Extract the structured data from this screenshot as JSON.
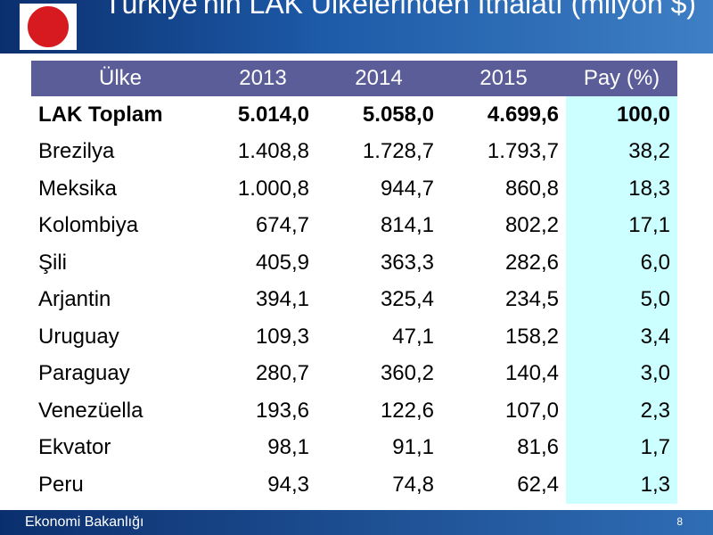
{
  "header": {
    "title": "Türkiye'nin LAK Ülkelerinden İthalatı (milyon $)"
  },
  "table": {
    "columns": [
      "Ülke",
      "2013",
      "2014",
      "2015",
      "Pay (%)"
    ],
    "rows": [
      [
        "LAK Toplam",
        "5.014,0",
        "5.058,0",
        "4.699,6",
        "100,0"
      ],
      [
        "Brezilya",
        "1.408,8",
        "1.728,7",
        "1.793,7",
        "38,2"
      ],
      [
        "Meksika",
        "1.000,8",
        "944,7",
        "860,8",
        "18,3"
      ],
      [
        "Kolombiya",
        "674,7",
        "814,1",
        "802,2",
        "17,1"
      ],
      [
        "Şili",
        "405,9",
        "363,3",
        "282,6",
        "6,0"
      ],
      [
        "Arjantin",
        "394,1",
        "325,4",
        "234,5",
        "5,0"
      ],
      [
        "Uruguay",
        "109,3",
        "47,1",
        "158,2",
        "3,4"
      ],
      [
        "Paraguay",
        "280,7",
        "360,2",
        "140,4",
        "3,0"
      ],
      [
        "Venezüella",
        "193,6",
        "122,6",
        "107,0",
        "2,3"
      ],
      [
        "Ekvator",
        "98,1",
        "91,1",
        "81,6",
        "1,7"
      ],
      [
        "Peru",
        "94,3",
        "74,8",
        "62,4",
        "1,3"
      ]
    ]
  },
  "footer": {
    "ministry": "Ekonomi Bakanlığı",
    "page": "8"
  }
}
